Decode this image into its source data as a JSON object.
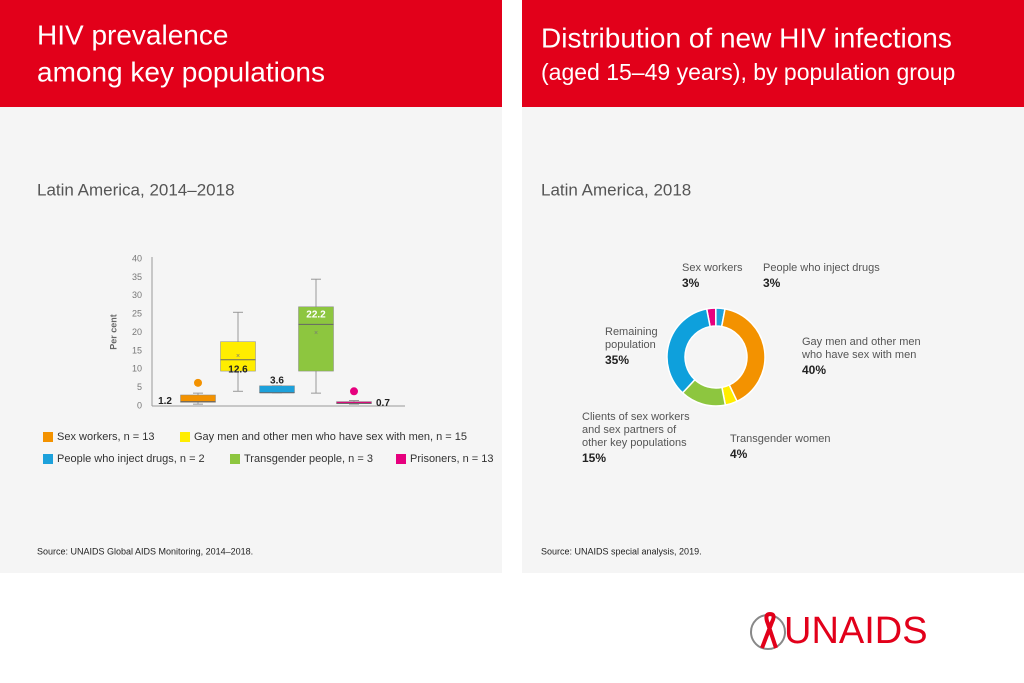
{
  "panels": [
    {
      "header": {
        "title_lines": [
          "HIV prevalence",
          "among key populations"
        ]
      },
      "source": "Source: UNAIDS Global AIDS Monitoring, 2014–2018."
    },
    {
      "header": {
        "title": "Distribution of new HIV infections",
        "subtitle": "(aged 15–49 years), by population group"
      },
      "source": "Source: UNAIDS special analysis, 2019."
    }
  ],
  "logo": "UNAIDS",
  "chart_data": [
    {
      "type": "box",
      "title": "Latin America, 2014–2018",
      "y_label": "Per cent",
      "ylim": [
        0,
        40
      ],
      "yticks": [
        0,
        5,
        10,
        15,
        20,
        25,
        30,
        35,
        40
      ],
      "series": [
        {
          "name": "Sex workers, n = 13",
          "color": "#f39200",
          "low": 0.5,
          "q1": 1,
          "median": 1.2,
          "q3": 3,
          "high": 3.5,
          "outliers": [
            6.3
          ]
        },
        {
          "name": "Gay men and other men who have sex with men, n = 15",
          "color": "#ffed00",
          "low": 4,
          "q1": 9.5,
          "median": 12.6,
          "q3": 17.5,
          "high": 25.5,
          "mean": 13.5
        },
        {
          "name": "People who inject drugs, n = 2",
          "color": "#1da1db",
          "low": 3.6,
          "q1": 3.6,
          "median": 3.6,
          "q3": 5.5,
          "high": 5.5
        },
        {
          "name": "Transgender people, n = 3",
          "color": "#8dc63f",
          "low": 3.5,
          "q1": 9.5,
          "median": 22.2,
          "q3": 27,
          "high": 34.5,
          "mean": 19.8
        },
        {
          "name": "Prisoners, n = 13",
          "color": "#e6007e",
          "low": 0.5,
          "q1": 0.7,
          "median": 0.7,
          "q3": 1.2,
          "high": 1.5,
          "outliers": [
            4
          ]
        }
      ]
    },
    {
      "type": "donut",
      "title": "Latin America, 2018",
      "categories": [
        "Sex workers",
        "People who inject drugs",
        "Gay men and other men who have sex with men",
        "Transgender women",
        "Clients of sex workers and sex partners of other key populations",
        "Remaining population"
      ],
      "values": [
        3,
        3,
        40,
        4,
        15,
        35
      ],
      "value_labels": [
        "3%",
        "3%",
        "40%",
        "4%",
        "15%",
        "35%"
      ],
      "colors": [
        "#e6007e",
        "#1da1db",
        "#f39200",
        "#ffed00",
        "#8dc63f",
        "#0ea0dc"
      ]
    }
  ]
}
